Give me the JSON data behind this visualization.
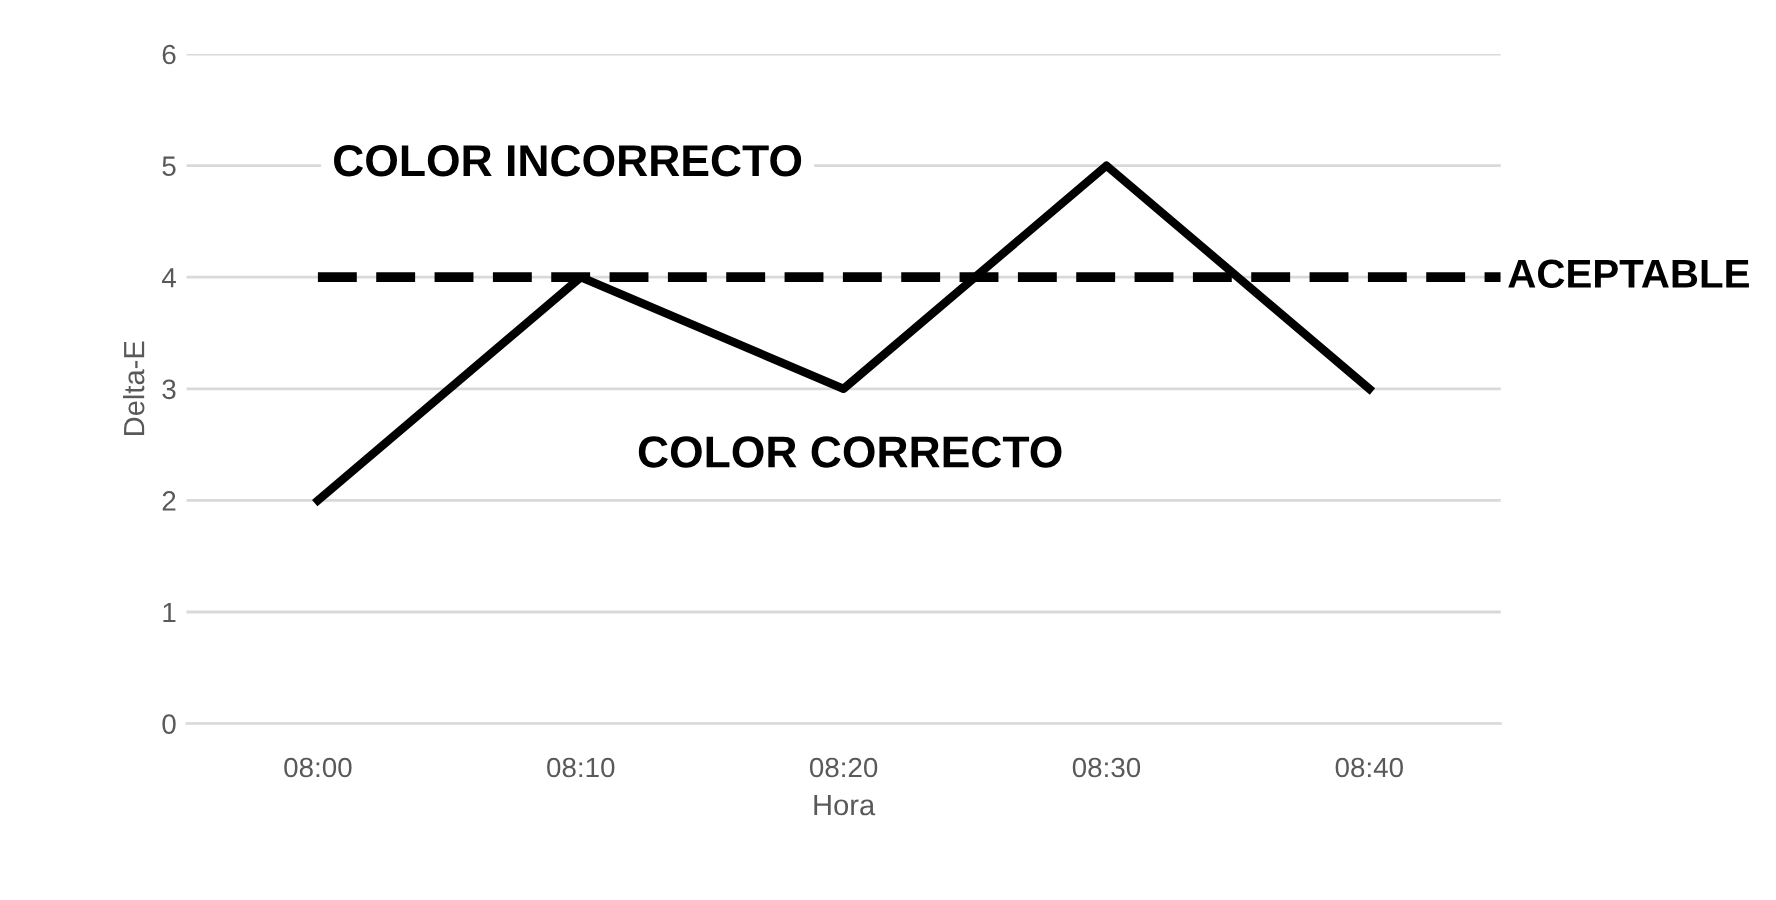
{
  "chart_data": {
    "type": "line",
    "xlabel": "Hora",
    "ylabel": "Delta-E",
    "categories": [
      "08:00",
      "08:10",
      "08:20",
      "08:30",
      "08:40"
    ],
    "series": [
      {
        "color": "#000000",
        "values": [
          2,
          4,
          3,
          5,
          3
        ]
      }
    ],
    "ylim": [
      0,
      6
    ],
    "yticks": [
      0,
      1,
      2,
      3,
      4,
      5,
      6
    ],
    "grid": "y",
    "legend": false,
    "marker": "none",
    "line_style": "solid",
    "ref_lines": [
      {
        "axis": "y",
        "value": 4,
        "label": "ACEPTABLE",
        "color": "#000000",
        "line_style": "dashed"
      }
    ],
    "annotations": [
      "COLOR INCORRECTO",
      "COLOR CORRECTO"
    ]
  }
}
